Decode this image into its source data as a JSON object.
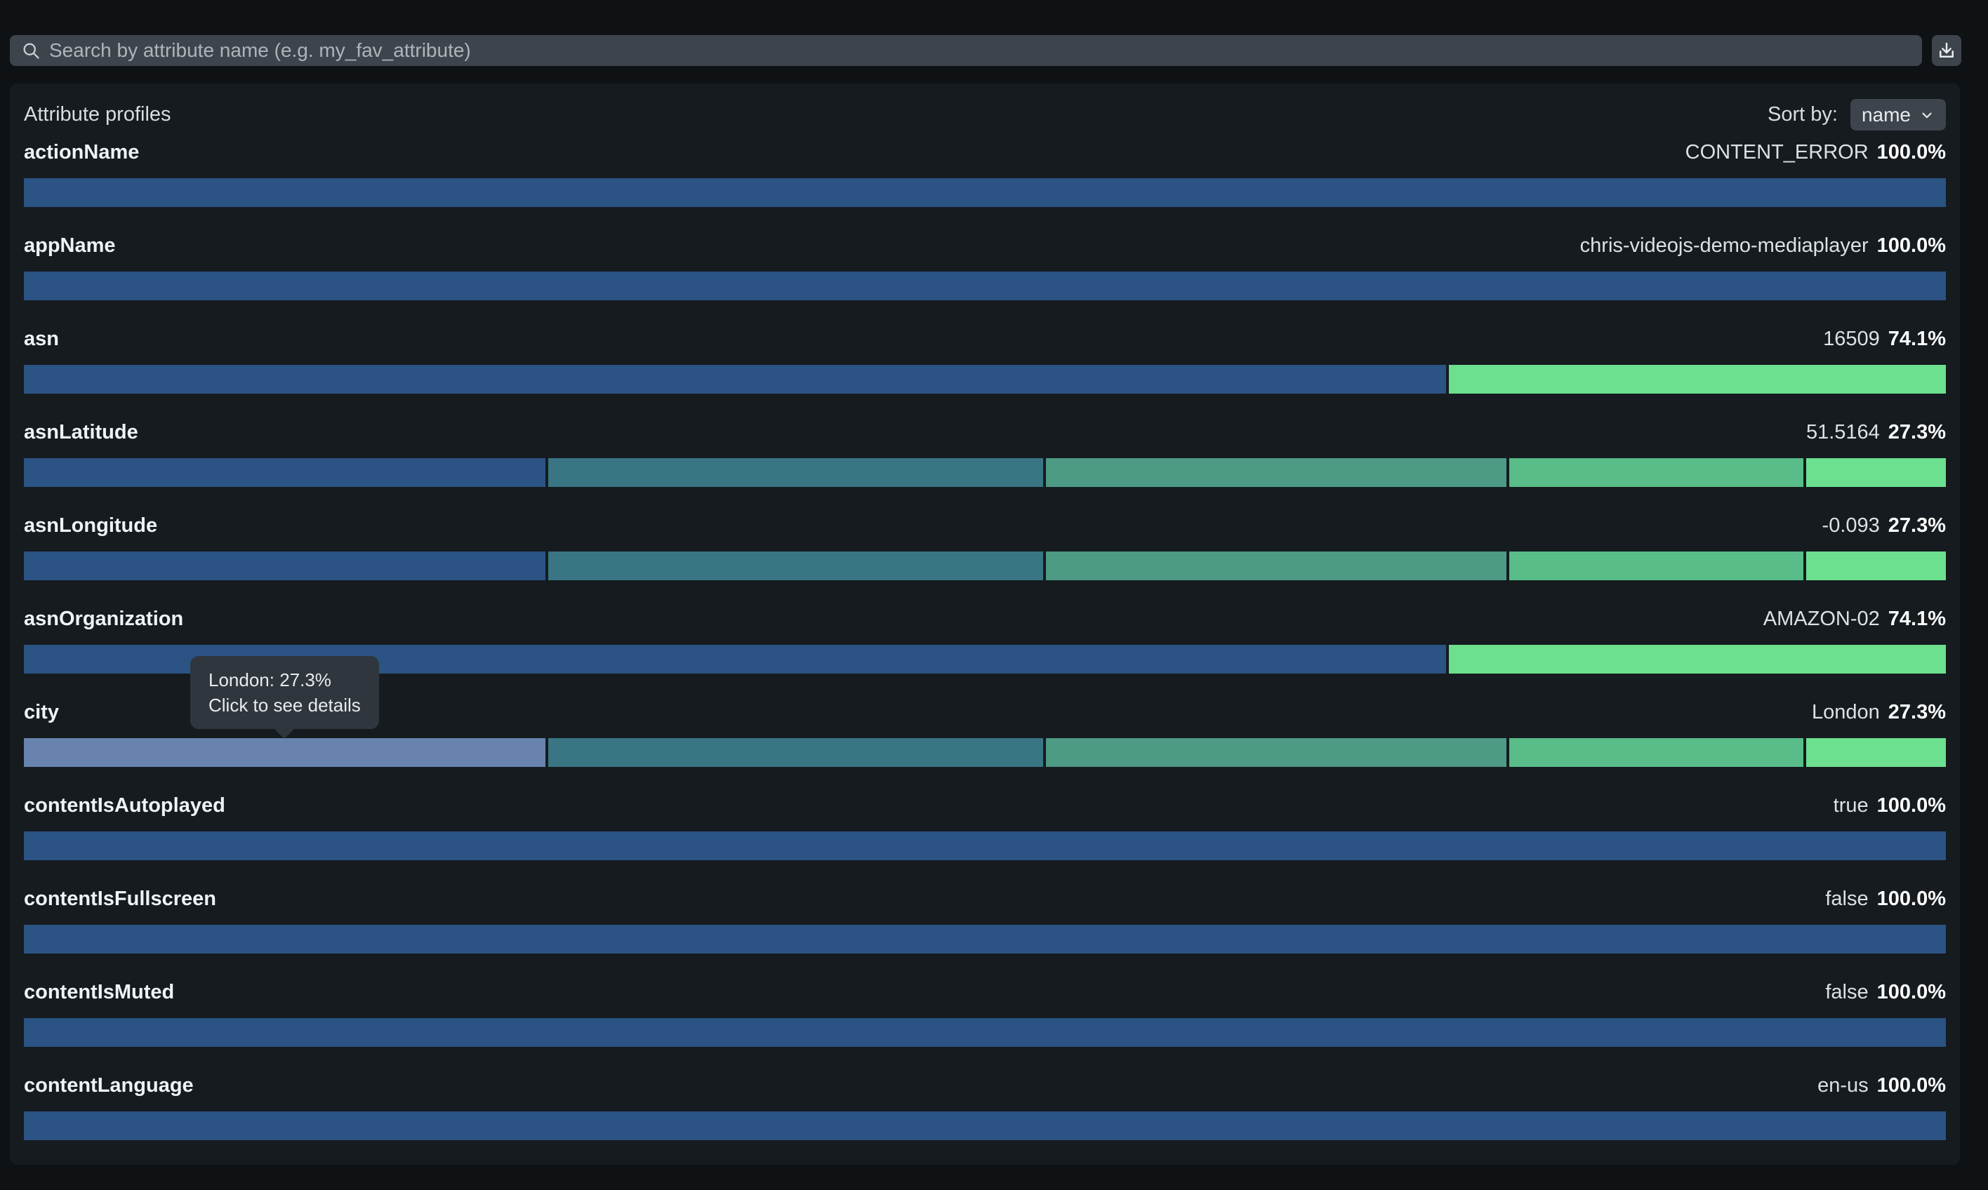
{
  "search": {
    "placeholder": "Search by attribute name (e.g. my_fav_attribute)"
  },
  "panel": {
    "title": "Attribute profiles",
    "sort_label": "Sort by:",
    "sort_value": "name"
  },
  "tooltip": {
    "line1": "London: 27.3%",
    "line2": "Click to see details"
  },
  "colors": {
    "blue": "#2b5384",
    "teal": "#3a7584",
    "seagreen": "#4d9a85",
    "green": "#58bd88",
    "lightgreen": "#6ce08f",
    "highlight": "#6884ae"
  },
  "chart_data": {
    "type": "bar",
    "attributes": [
      {
        "name": "actionName",
        "top_value": "CONTENT_ERROR",
        "top_percent": "100.0%",
        "segments": [
          {
            "pct": 100,
            "color": "blue"
          }
        ]
      },
      {
        "name": "appName",
        "top_value": "chris-videojs-demo-mediaplayer",
        "top_percent": "100.0%",
        "segments": [
          {
            "pct": 100,
            "color": "blue"
          }
        ]
      },
      {
        "name": "asn",
        "top_value": "16509",
        "top_percent": "74.1%",
        "segments": [
          {
            "pct": 74.1,
            "color": "blue"
          },
          {
            "pct": 25.9,
            "color": "lightgreen"
          }
        ]
      },
      {
        "name": "asnLatitude",
        "top_value": "51.5164",
        "top_percent": "27.3%",
        "segments": [
          {
            "pct": 27.3,
            "color": "blue"
          },
          {
            "pct": 25.9,
            "color": "teal"
          },
          {
            "pct": 24.1,
            "color": "seagreen"
          },
          {
            "pct": 15.4,
            "color": "green"
          },
          {
            "pct": 7.3,
            "color": "lightgreen"
          }
        ]
      },
      {
        "name": "asnLongitude",
        "top_value": "-0.093",
        "top_percent": "27.3%",
        "segments": [
          {
            "pct": 27.3,
            "color": "blue"
          },
          {
            "pct": 25.9,
            "color": "teal"
          },
          {
            "pct": 24.1,
            "color": "seagreen"
          },
          {
            "pct": 15.4,
            "color": "green"
          },
          {
            "pct": 7.3,
            "color": "lightgreen"
          }
        ]
      },
      {
        "name": "asnOrganization",
        "top_value": "AMAZON-02",
        "top_percent": "74.1%",
        "segments": [
          {
            "pct": 74.1,
            "color": "blue"
          },
          {
            "pct": 25.9,
            "color": "lightgreen"
          }
        ]
      },
      {
        "name": "city",
        "top_value": "London",
        "top_percent": "27.3%",
        "segments": [
          {
            "pct": 27.3,
            "color": "highlight",
            "highlighted": true
          },
          {
            "pct": 25.9,
            "color": "teal"
          },
          {
            "pct": 24.1,
            "color": "seagreen"
          },
          {
            "pct": 15.4,
            "color": "green"
          },
          {
            "pct": 7.3,
            "color": "lightgreen"
          }
        ]
      },
      {
        "name": "contentIsAutoplayed",
        "top_value": "true",
        "top_percent": "100.0%",
        "segments": [
          {
            "pct": 100,
            "color": "blue"
          }
        ]
      },
      {
        "name": "contentIsFullscreen",
        "top_value": "false",
        "top_percent": "100.0%",
        "segments": [
          {
            "pct": 100,
            "color": "blue"
          }
        ]
      },
      {
        "name": "contentIsMuted",
        "top_value": "false",
        "top_percent": "100.0%",
        "segments": [
          {
            "pct": 100,
            "color": "blue"
          }
        ]
      },
      {
        "name": "contentLanguage",
        "top_value": "en-us",
        "top_percent": "100.0%",
        "segments": [
          {
            "pct": 100,
            "color": "blue"
          }
        ]
      }
    ]
  }
}
